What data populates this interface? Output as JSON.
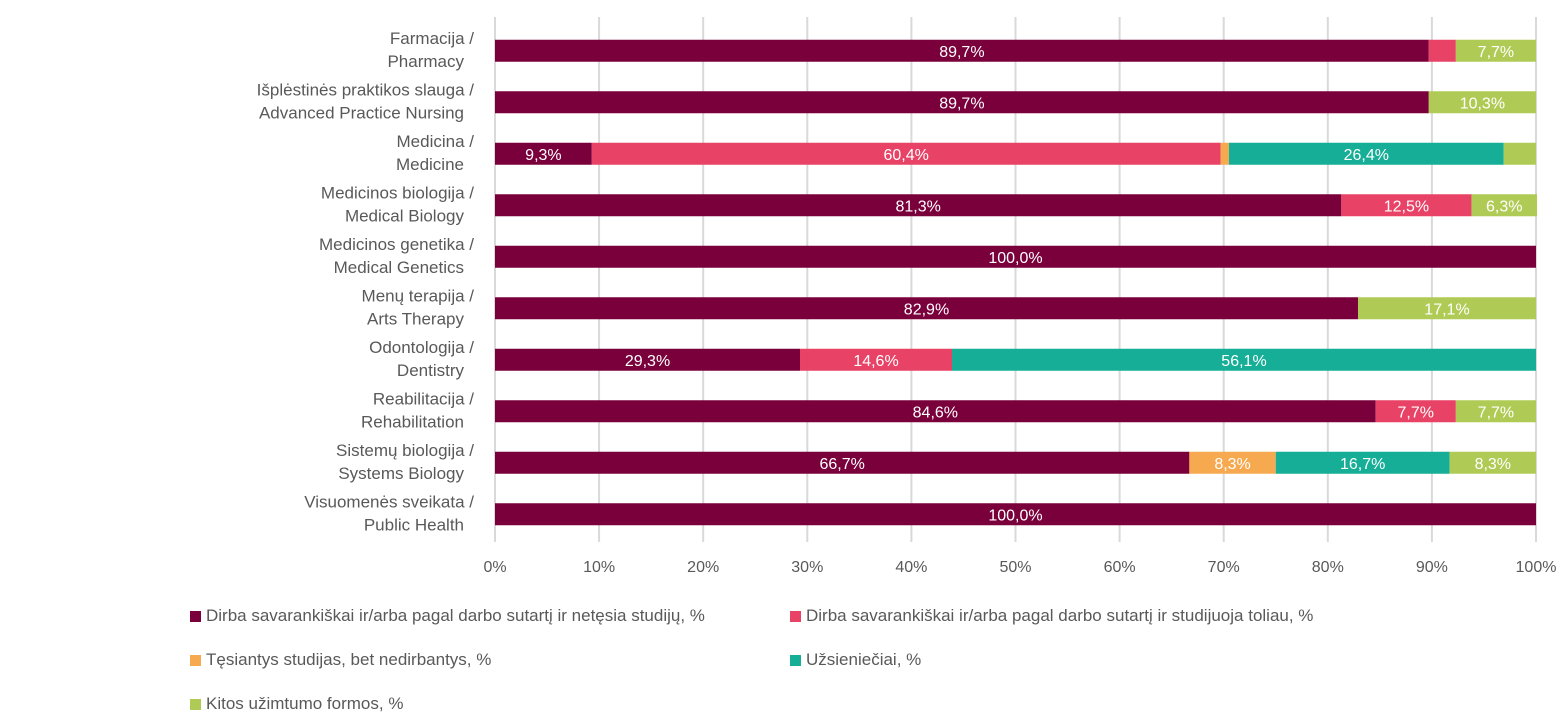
{
  "chart_data": {
    "type": "bar",
    "orientation": "horizontal",
    "stacked": true,
    "percent_stacked": true,
    "title": "",
    "xlabel": "",
    "ylabel": "",
    "xlim": [
      0,
      100
    ],
    "grid": true,
    "legend_position": "bottom",
    "categories": [
      [
        "Farmacija /",
        "Pharmacy"
      ],
      [
        "Išplėstinės praktikos slauga /",
        "Advanced Practice Nursing"
      ],
      [
        "Medicina /",
        "Medicine"
      ],
      [
        "Medicinos biologija /",
        "Medical Biology"
      ],
      [
        "Medicinos genetika /",
        "Medical Genetics"
      ],
      [
        "Menų terapija /",
        "Arts Therapy"
      ],
      [
        "Odontologija /",
        "Dentistry"
      ],
      [
        "Reabilitacija /",
        "Rehabilitation"
      ],
      [
        "Sistemų biologija /",
        "Systems Biology"
      ],
      [
        "Visuomenės sveikata /",
        "Public Health"
      ]
    ],
    "x_ticks": [
      "0%",
      "10%",
      "20%",
      "30%",
      "40%",
      "50%",
      "60%",
      "70%",
      "80%",
      "90%",
      "100%"
    ],
    "series": [
      {
        "name": "Dirba savarankiškai ir/arba pagal darbo sutartį ir netęsia studijų, %",
        "color": "#7a003c",
        "values": [
          89.7,
          89.7,
          9.3,
          81.3,
          100.0,
          82.9,
          29.3,
          84.6,
          66.7,
          100.0
        ],
        "labels": [
          "89,7%",
          "89,7%",
          "9,3%",
          "81,3%",
          "100,0%",
          "82,9%",
          "29,3%",
          "84,6%",
          "66,7%",
          "100,0%"
        ]
      },
      {
        "name": "Dirba savarankiškai ir/arba pagal darbo sutartį ir studijuoja toliau, %",
        "color": "#e84266",
        "values": [
          2.6,
          0,
          60.4,
          12.5,
          0,
          0,
          14.6,
          7.7,
          0,
          0
        ],
        "labels": [
          "",
          "",
          "60,4%",
          "12,5%",
          "",
          "",
          "14,6%",
          "7,7%",
          "",
          ""
        ]
      },
      {
        "name": "Tęsiantys studijas, bet nedirbantys, %",
        "color": "#f7a94f",
        "values": [
          0,
          0,
          0.8,
          0,
          0,
          0,
          0,
          0,
          8.3,
          0
        ],
        "labels": [
          "",
          "",
          "",
          "",
          "",
          "",
          "",
          "",
          "8,3%",
          ""
        ]
      },
      {
        "name": "Užsieniečiai, %",
        "color": "#16ae96",
        "values": [
          0,
          0,
          26.4,
          0,
          0,
          0,
          56.1,
          0,
          16.7,
          0
        ],
        "labels": [
          "",
          "",
          "26,4%",
          "",
          "",
          "",
          "56,1%",
          "",
          "16,7%",
          ""
        ]
      },
      {
        "name": "Kitos užimtumo formos, %",
        "color": "#b0cb55",
        "values": [
          7.7,
          10.3,
          3.1,
          6.3,
          0,
          17.1,
          0,
          7.7,
          8.3,
          0
        ],
        "labels": [
          "7,7%",
          "10,3%",
          "",
          "6,3%",
          "",
          "17,1%",
          "",
          "7,7%",
          "8,3%",
          ""
        ]
      }
    ]
  }
}
